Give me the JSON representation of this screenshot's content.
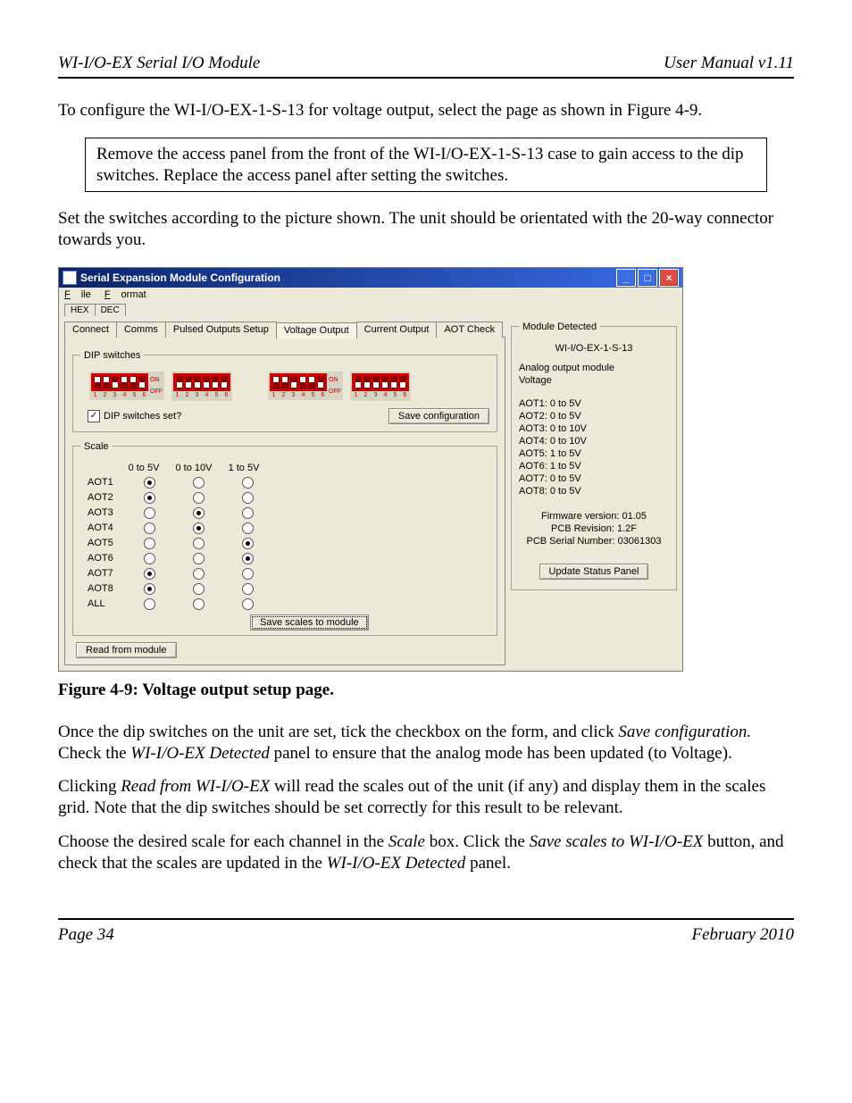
{
  "header": {
    "left": "WI-I/O-EX Serial I/O Module",
    "right": "User Manual v1.11"
  },
  "intro_para": "To configure the WI-I/O-EX-1-S-13 for voltage output, select the page as shown in Figure 4-9.",
  "note_box": "Remove the access panel from the front of the WI-I/O-EX-1-S-13 case to gain access to the dip switches. Replace the access panel after setting the switches.",
  "set_switches_para": "Set the switches according to the picture shown. The unit should be orientated with the 20-way connector towards you.",
  "window": {
    "title": "Serial Expansion Module Configuration",
    "menu": {
      "file": "File",
      "file_ul": "F",
      "format": "Format",
      "format_ul": "F"
    },
    "hexdec": {
      "hex": "HEX",
      "dec": "DEC"
    },
    "tabs": {
      "connect": "Connect",
      "comms": "Comms",
      "pulsed": "Pulsed Outputs Setup",
      "voltage": "Voltage Output",
      "current": "Current Output",
      "aot": "AOT Check"
    },
    "dip_legend": "DIP switches",
    "dip_set_label": "DIP switches set?",
    "dip_set_checked": "✓",
    "save_config_btn": "Save configuration",
    "scale_legend": "Scale",
    "scale_cols": {
      "c1": "0 to 5V",
      "c2": "0 to 10V",
      "c3": "1 to 5V"
    },
    "scale_rows": {
      "r1": "AOT1",
      "r2": "AOT2",
      "r3": "AOT3",
      "r4": "AOT4",
      "r5": "AOT5",
      "r6": "AOT6",
      "r7": "AOT7",
      "r8": "AOT8",
      "r9": "ALL"
    },
    "scale_selected": {
      "AOT1": 0,
      "AOT2": 0,
      "AOT3": 1,
      "AOT4": 1,
      "AOT5": 2,
      "AOT6": 2,
      "AOT7": 0,
      "AOT8": 0,
      "ALL": -1
    },
    "save_scales_btn": "Save scales to module",
    "read_btn": "Read from module",
    "module_panel": {
      "legend": "Module Detected",
      "model": "WI-I/O-EX-1-S-13",
      "type1": "Analog output module",
      "type2": "Voltage",
      "aot": {
        "l1": "AOT1: 0 to 5V",
        "l2": "AOT2: 0 to 5V",
        "l3": "AOT3: 0 to 10V",
        "l4": "AOT4: 0 to 10V",
        "l5": "AOT5: 1 to 5V",
        "l6": "AOT6: 1 to 5V",
        "l7": "AOT7: 0 to 5V",
        "l8": "AOT8: 0 to 5V"
      },
      "fw": "Firmware version:  01.05",
      "pcb": "PCB Revision:  1.2F",
      "serial": "PCB Serial Number:  03061303",
      "update_btn": "Update Status Panel"
    },
    "dip_banks": {
      "bank1": [
        "up",
        "up",
        "dn",
        "up",
        "up",
        "dn"
      ],
      "bank2": [
        "dn",
        "dn",
        "dn",
        "dn",
        "dn",
        "dn"
      ],
      "bank3": [
        "up",
        "up",
        "dn",
        "up",
        "up",
        "dn"
      ],
      "bank4": [
        "dn",
        "dn",
        "dn",
        "dn",
        "dn",
        "dn"
      ],
      "nums": "1 2 3 4 5 6",
      "on": "ON",
      "off": "OFF"
    }
  },
  "figure_caption": "Figure 4-9: Voltage output setup page.",
  "para_after1_a": "Once the dip switches on the unit are set, tick the checkbox on the form, and click ",
  "para_after1_b": "Save configuration.",
  "para_after1_c": " Check the ",
  "para_after1_d": "WI-I/O-EX Detected",
  "para_after1_e": " panel to ensure that the analog mode has been updated (to Voltage).",
  "para_after2_a": "Clicking ",
  "para_after2_b": "Read from WI-I/O-EX",
  "para_after2_c": " will read the scales out of the unit (if any) and display them in the scales grid. Note that the dip switches should be set correctly for this result to be relevant.",
  "para_after3_a": "Choose the desired scale for each channel in the ",
  "para_after3_b": "Scale",
  "para_after3_c": " box. Click the ",
  "para_after3_d": "Save scales to WI-I/O-EX",
  "para_after3_e": " button, and check that the scales are updated in the ",
  "para_after3_f": "WI-I/O-EX Detected",
  "para_after3_g": " panel.",
  "footer": {
    "left": "Page  34",
    "right": "February 2010"
  }
}
